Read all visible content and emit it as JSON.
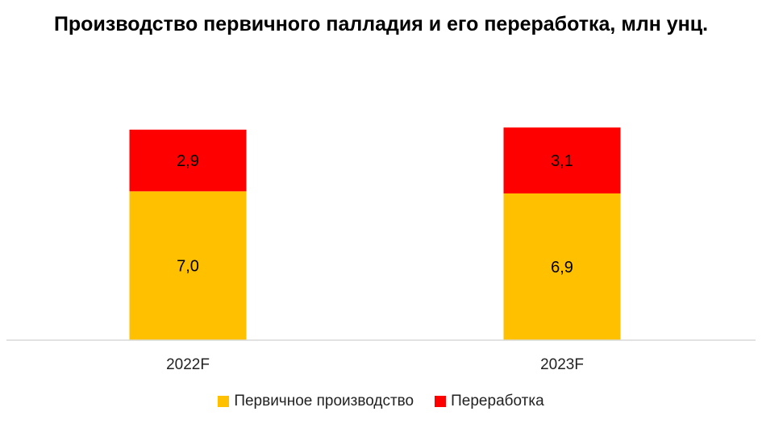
{
  "chart_data": {
    "type": "bar",
    "stacked": true,
    "title": "Производство первичного палладия и его переработка, млн унц.",
    "categories": [
      "2022F",
      "2023F"
    ],
    "series": [
      {
        "name": "Первичное производство",
        "values": [
          7.0,
          6.9
        ],
        "labels": [
          "7,0",
          "6,9"
        ],
        "color": "#FFC000"
      },
      {
        "name": "Переработка",
        "values": [
          2.9,
          3.1
        ],
        "labels": [
          "2,9",
          "3,1"
        ],
        "color": "#FF0000"
      }
    ],
    "ylim": [
      0,
      10.5
    ],
    "grid": false,
    "legend_position": "bottom"
  }
}
